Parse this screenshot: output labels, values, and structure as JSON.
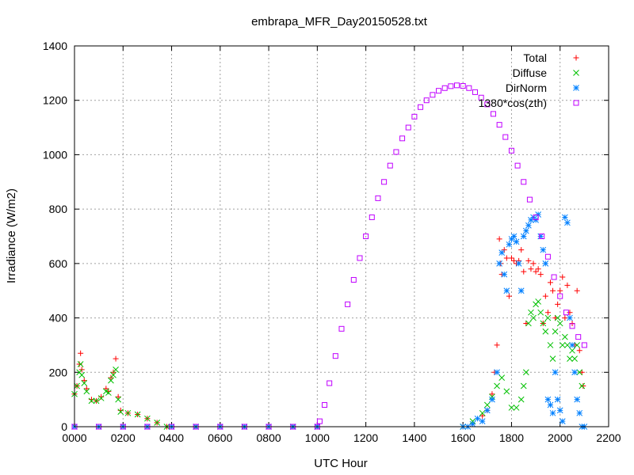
{
  "chart_data": {
    "type": "scatter",
    "title": "embrapa_MFR_Day20150528.txt",
    "xlabel": "UTC Hour",
    "ylabel": "Irradiance (W/m2)",
    "xlim": [
      0,
      2200
    ],
    "ylim": [
      0,
      1400
    ],
    "x_ticks": [
      0,
      200,
      400,
      600,
      800,
      1000,
      1200,
      1400,
      1600,
      1800,
      2000,
      2200
    ],
    "x_tick_labels": [
      "0000",
      "0200",
      "0400",
      "0600",
      "0800",
      "1000",
      "1200",
      "1400",
      "1600",
      "1800",
      "2000",
      "2200"
    ],
    "y_ticks": [
      0,
      200,
      400,
      600,
      800,
      1000,
      1200,
      1400
    ],
    "y_tick_labels": [
      "0",
      "200",
      "400",
      "600",
      "800",
      "1000",
      "1200",
      "1400"
    ],
    "grid": true,
    "legend_position": "top-right",
    "series": [
      {
        "name": "Total",
        "marker": "plus",
        "color": "#ff0000",
        "points": [
          [
            0,
            120
          ],
          [
            10,
            150
          ],
          [
            20,
            230
          ],
          [
            25,
            270
          ],
          [
            30,
            210
          ],
          [
            40,
            170
          ],
          [
            50,
            140
          ],
          [
            70,
            100
          ],
          [
            90,
            95
          ],
          [
            110,
            110
          ],
          [
            130,
            140
          ],
          [
            140,
            130
          ],
          [
            150,
            180
          ],
          [
            160,
            200
          ],
          [
            170,
            250
          ],
          [
            180,
            110
          ],
          [
            190,
            60
          ],
          [
            220,
            50
          ],
          [
            260,
            45
          ],
          [
            300,
            30
          ],
          [
            340,
            15
          ],
          [
            380,
            0
          ],
          [
            500,
            0
          ],
          [
            700,
            0
          ],
          [
            900,
            0
          ],
          [
            1000,
            0
          ],
          [
            1600,
            0
          ],
          [
            1640,
            10
          ],
          [
            1680,
            40
          ],
          [
            1700,
            60
          ],
          [
            1720,
            120
          ],
          [
            1730,
            200
          ],
          [
            1740,
            300
          ],
          [
            1750,
            690
          ],
          [
            1755,
            600
          ],
          [
            1760,
            560
          ],
          [
            1770,
            650
          ],
          [
            1780,
            620
          ],
          [
            1790,
            480
          ],
          [
            1800,
            620
          ],
          [
            1810,
            610
          ],
          [
            1820,
            600
          ],
          [
            1830,
            610
          ],
          [
            1840,
            650
          ],
          [
            1850,
            570
          ],
          [
            1860,
            380
          ],
          [
            1870,
            610
          ],
          [
            1880,
            580
          ],
          [
            1890,
            600
          ],
          [
            1900,
            570
          ],
          [
            1910,
            580
          ],
          [
            1920,
            560
          ],
          [
            1930,
            380
          ],
          [
            1940,
            480
          ],
          [
            1950,
            420
          ],
          [
            1960,
            530
          ],
          [
            1970,
            500
          ],
          [
            1980,
            400
          ],
          [
            1990,
            450
          ],
          [
            2000,
            500
          ],
          [
            2010,
            550
          ],
          [
            2020,
            400
          ],
          [
            2030,
            520
          ],
          [
            2040,
            420
          ],
          [
            2050,
            380
          ],
          [
            2060,
            300
          ],
          [
            2070,
            500
          ],
          [
            2080,
            280
          ],
          [
            2090,
            200
          ],
          [
            2095,
            150
          ]
        ]
      },
      {
        "name": "Diffuse",
        "marker": "cross",
        "color": "#00c000",
        "points": [
          [
            0,
            120
          ],
          [
            10,
            150
          ],
          [
            20,
            200
          ],
          [
            25,
            230
          ],
          [
            30,
            190
          ],
          [
            40,
            160
          ],
          [
            50,
            130
          ],
          [
            70,
            95
          ],
          [
            90,
            95
          ],
          [
            110,
            105
          ],
          [
            130,
            130
          ],
          [
            140,
            125
          ],
          [
            150,
            170
          ],
          [
            160,
            190
          ],
          [
            170,
            210
          ],
          [
            180,
            100
          ],
          [
            190,
            55
          ],
          [
            220,
            50
          ],
          [
            260,
            45
          ],
          [
            300,
            30
          ],
          [
            340,
            15
          ],
          [
            380,
            0
          ],
          [
            500,
            0
          ],
          [
            700,
            0
          ],
          [
            900,
            0
          ],
          [
            1000,
            0
          ],
          [
            1600,
            0
          ],
          [
            1640,
            20
          ],
          [
            1680,
            50
          ],
          [
            1700,
            80
          ],
          [
            1720,
            110
          ],
          [
            1740,
            150
          ],
          [
            1760,
            180
          ],
          [
            1780,
            130
          ],
          [
            1800,
            70
          ],
          [
            1820,
            70
          ],
          [
            1840,
            100
          ],
          [
            1850,
            150
          ],
          [
            1860,
            200
          ],
          [
            1870,
            380
          ],
          [
            1880,
            420
          ],
          [
            1890,
            400
          ],
          [
            1900,
            450
          ],
          [
            1910,
            460
          ],
          [
            1920,
            420
          ],
          [
            1930,
            380
          ],
          [
            1940,
            350
          ],
          [
            1950,
            400
          ],
          [
            1960,
            300
          ],
          [
            1970,
            250
          ],
          [
            1980,
            350
          ],
          [
            1990,
            400
          ],
          [
            2000,
            380
          ],
          [
            2010,
            300
          ],
          [
            2020,
            330
          ],
          [
            2030,
            300
          ],
          [
            2040,
            250
          ],
          [
            2050,
            280
          ],
          [
            2060,
            250
          ],
          [
            2070,
            300
          ],
          [
            2080,
            200
          ],
          [
            2090,
            150
          ]
        ]
      },
      {
        "name": "DirNorm",
        "marker": "star",
        "color": "#0080ff",
        "points": [
          [
            0,
            0
          ],
          [
            100,
            0
          ],
          [
            200,
            0
          ],
          [
            300,
            0
          ],
          [
            400,
            0
          ],
          [
            500,
            0
          ],
          [
            600,
            0
          ],
          [
            700,
            0
          ],
          [
            800,
            0
          ],
          [
            900,
            0
          ],
          [
            1000,
            0
          ],
          [
            1600,
            0
          ],
          [
            1620,
            0
          ],
          [
            1640,
            10
          ],
          [
            1660,
            30
          ],
          [
            1680,
            20
          ],
          [
            1700,
            60
          ],
          [
            1720,
            100
          ],
          [
            1740,
            200
          ],
          [
            1750,
            600
          ],
          [
            1760,
            640
          ],
          [
            1770,
            560
          ],
          [
            1780,
            500
          ],
          [
            1790,
            670
          ],
          [
            1800,
            690
          ],
          [
            1810,
            700
          ],
          [
            1820,
            680
          ],
          [
            1830,
            600
          ],
          [
            1840,
            500
          ],
          [
            1850,
            700
          ],
          [
            1860,
            720
          ],
          [
            1870,
            740
          ],
          [
            1880,
            760
          ],
          [
            1890,
            770
          ],
          [
            1900,
            760
          ],
          [
            1910,
            780
          ],
          [
            1920,
            700
          ],
          [
            1930,
            650
          ],
          [
            1940,
            600
          ],
          [
            1950,
            100
          ],
          [
            1960,
            80
          ],
          [
            1970,
            50
          ],
          [
            1980,
            200
          ],
          [
            1990,
            100
          ],
          [
            2000,
            60
          ],
          [
            2010,
            20
          ],
          [
            2020,
            770
          ],
          [
            2030,
            750
          ],
          [
            2040,
            400
          ],
          [
            2050,
            300
          ],
          [
            2060,
            200
          ],
          [
            2070,
            100
          ],
          [
            2080,
            50
          ],
          [
            2090,
            0
          ],
          [
            2100,
            0
          ]
        ]
      },
      {
        "name": "1380*cos(zth)",
        "marker": "square",
        "color": "#c000ff",
        "points": [
          [
            0,
            0
          ],
          [
            100,
            0
          ],
          [
            200,
            0
          ],
          [
            300,
            0
          ],
          [
            400,
            0
          ],
          [
            500,
            0
          ],
          [
            600,
            0
          ],
          [
            700,
            0
          ],
          [
            800,
            0
          ],
          [
            900,
            0
          ],
          [
            1000,
            0
          ],
          [
            1010,
            20
          ],
          [
            1030,
            80
          ],
          [
            1050,
            160
          ],
          [
            1075,
            260
          ],
          [
            1100,
            360
          ],
          [
            1125,
            450
          ],
          [
            1150,
            540
          ],
          [
            1175,
            620
          ],
          [
            1200,
            700
          ],
          [
            1225,
            770
          ],
          [
            1250,
            840
          ],
          [
            1275,
            900
          ],
          [
            1300,
            960
          ],
          [
            1325,
            1010
          ],
          [
            1350,
            1060
          ],
          [
            1375,
            1100
          ],
          [
            1400,
            1140
          ],
          [
            1425,
            1175
          ],
          [
            1450,
            1200
          ],
          [
            1475,
            1220
          ],
          [
            1500,
            1235
          ],
          [
            1525,
            1245
          ],
          [
            1550,
            1252
          ],
          [
            1575,
            1255
          ],
          [
            1600,
            1253
          ],
          [
            1625,
            1245
          ],
          [
            1650,
            1230
          ],
          [
            1675,
            1210
          ],
          [
            1700,
            1185
          ],
          [
            1725,
            1150
          ],
          [
            1750,
            1110
          ],
          [
            1775,
            1065
          ],
          [
            1800,
            1015
          ],
          [
            1825,
            960
          ],
          [
            1850,
            900
          ],
          [
            1875,
            835
          ],
          [
            1900,
            770
          ],
          [
            1925,
            700
          ],
          [
            1950,
            625
          ],
          [
            1975,
            550
          ],
          [
            2000,
            480
          ],
          [
            2025,
            420
          ],
          [
            2050,
            370
          ],
          [
            2075,
            330
          ],
          [
            2100,
            300
          ]
        ]
      }
    ]
  }
}
